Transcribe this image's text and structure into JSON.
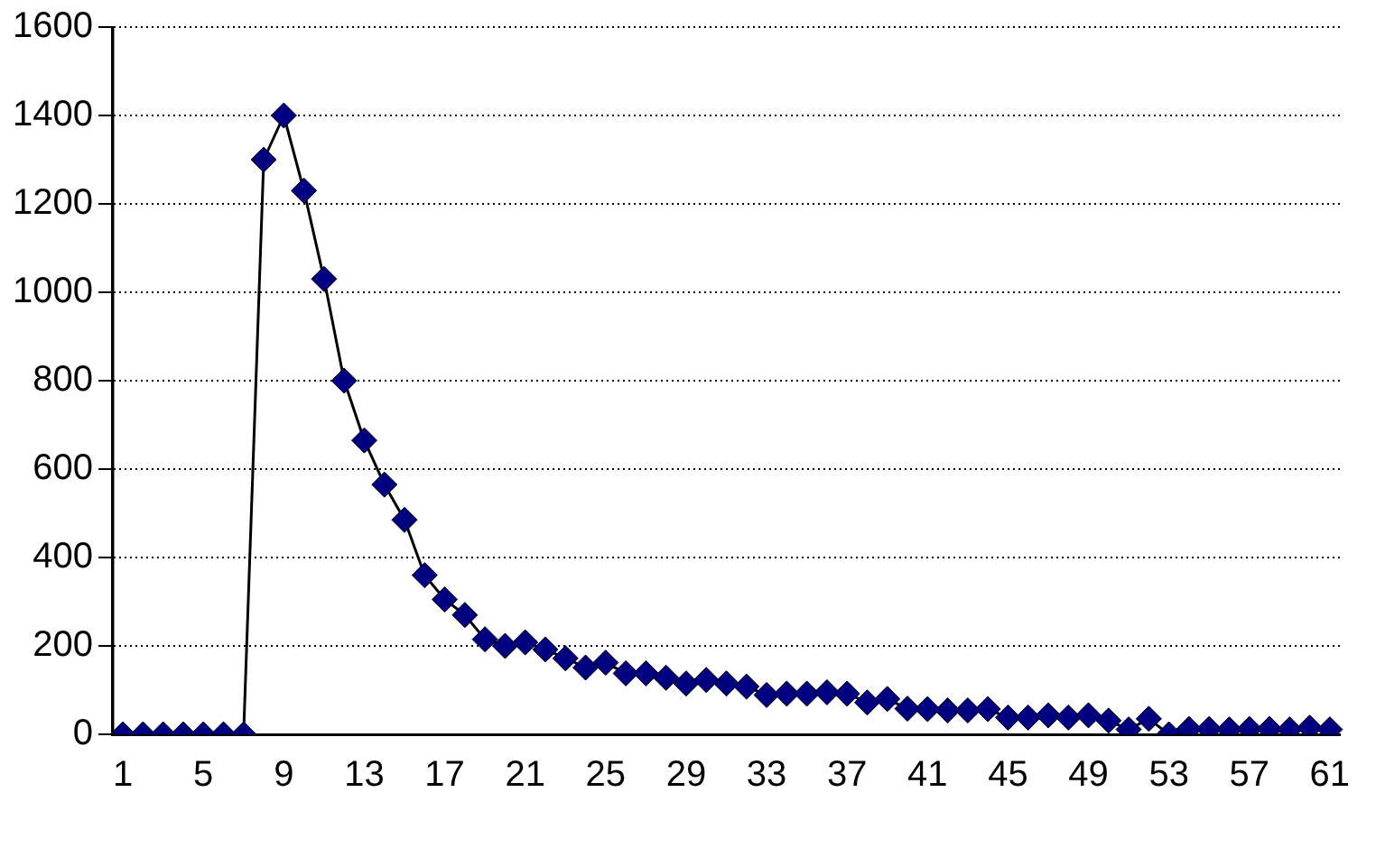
{
  "chart_data": {
    "type": "line",
    "categories": [
      "1",
      null,
      null,
      null,
      "5",
      null,
      null,
      null,
      "9",
      null,
      null,
      null,
      "13",
      null,
      null,
      null,
      "17",
      null,
      null,
      null,
      "21",
      null,
      null,
      null,
      "25",
      null,
      null,
      null,
      "29",
      null,
      null,
      null,
      "33",
      null,
      null,
      null,
      "37",
      null,
      null,
      null,
      "41",
      null,
      null,
      null,
      "45",
      null,
      null,
      null,
      "49",
      null,
      null,
      null,
      "53",
      null,
      null,
      null,
      "57",
      null,
      null,
      null,
      "61"
    ],
    "series": [
      {
        "color": "#000080",
        "values": [
          0,
          0,
          0,
          0,
          0,
          0,
          0,
          1300,
          1400,
          1230,
          1030,
          800,
          665,
          565,
          485,
          360,
          305,
          270,
          215,
          200,
          208,
          192,
          172,
          151,
          162,
          138,
          138,
          128,
          115,
          123,
          115,
          108,
          89,
          92,
          92,
          95,
          92,
          72,
          80,
          58,
          57,
          54,
          54,
          57,
          38,
          38,
          43,
          38,
          43,
          31,
          11,
          35,
          0,
          12,
          12,
          11,
          12,
          12,
          11,
          15,
          11
        ]
      }
    ],
    "ylim": [
      0,
      1600
    ],
    "yticks": [
      0,
      200,
      400,
      600,
      800,
      1000,
      1200,
      1400,
      1600
    ],
    "grid": "y",
    "marker": "diamond",
    "line_style": "solid",
    "legend": false
  }
}
